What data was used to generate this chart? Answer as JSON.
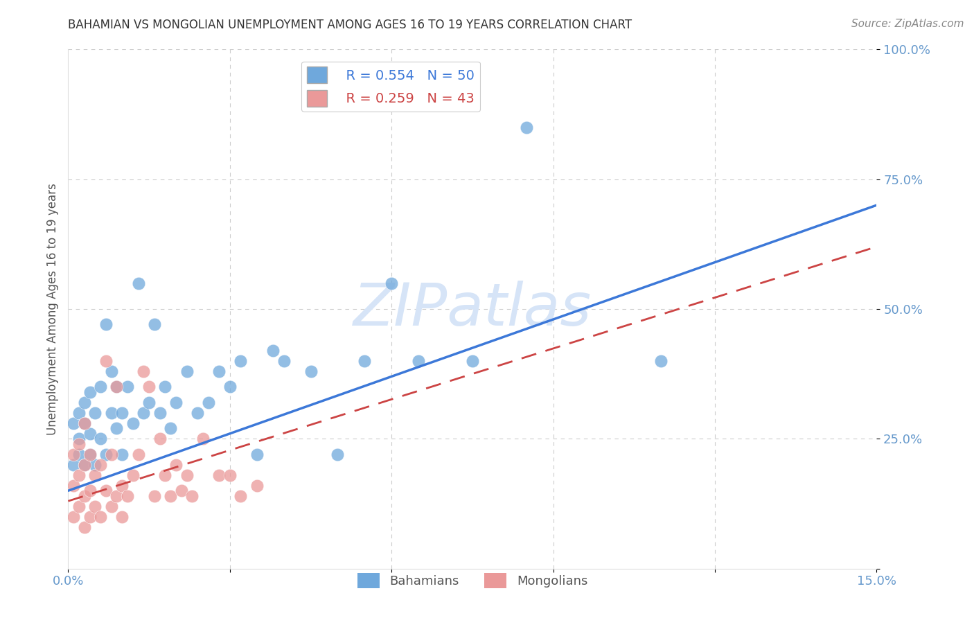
{
  "title": "BAHAMIAN VS MONGOLIAN UNEMPLOYMENT AMONG AGES 16 TO 19 YEARS CORRELATION CHART",
  "source": "Source: ZipAtlas.com",
  "ylabel": "Unemployment Among Ages 16 to 19 years",
  "xlim": [
    0.0,
    0.15
  ],
  "ylim": [
    0.0,
    1.0
  ],
  "xticks": [
    0.0,
    0.03,
    0.06,
    0.09,
    0.12,
    0.15
  ],
  "yticks": [
    0.0,
    0.25,
    0.5,
    0.75,
    1.0
  ],
  "xtick_labels": [
    "0.0%",
    "",
    "",
    "",
    "",
    "15.0%"
  ],
  "ytick_labels": [
    "",
    "25.0%",
    "50.0%",
    "75.0%",
    "100.0%"
  ],
  "bahamians_R": "0.554",
  "bahamians_N": "50",
  "mongolians_R": "0.259",
  "mongolians_N": "43",
  "bahamas_color": "#6fa8dc",
  "mongolians_color": "#ea9999",
  "trendline_bahamas_color": "#3c78d8",
  "trendline_mongolians_color": "#cc4444",
  "background_color": "#ffffff",
  "grid_color": "#cccccc",
  "title_color": "#333333",
  "axis_label_color": "#6699cc",
  "watermark_color": "#d6e4f7",
  "bahamians_x": [
    0.001,
    0.001,
    0.002,
    0.002,
    0.002,
    0.003,
    0.003,
    0.003,
    0.004,
    0.004,
    0.004,
    0.005,
    0.005,
    0.006,
    0.006,
    0.007,
    0.007,
    0.008,
    0.008,
    0.009,
    0.009,
    0.01,
    0.01,
    0.011,
    0.012,
    0.013,
    0.014,
    0.015,
    0.016,
    0.017,
    0.018,
    0.019,
    0.02,
    0.022,
    0.024,
    0.026,
    0.028,
    0.03,
    0.032,
    0.035,
    0.038,
    0.04,
    0.045,
    0.05,
    0.055,
    0.06,
    0.065,
    0.075,
    0.085,
    0.11
  ],
  "bahamians_y": [
    0.2,
    0.28,
    0.22,
    0.25,
    0.3,
    0.2,
    0.28,
    0.32,
    0.22,
    0.26,
    0.34,
    0.2,
    0.3,
    0.25,
    0.35,
    0.22,
    0.47,
    0.3,
    0.38,
    0.27,
    0.35,
    0.22,
    0.3,
    0.35,
    0.28,
    0.55,
    0.3,
    0.32,
    0.47,
    0.3,
    0.35,
    0.27,
    0.32,
    0.38,
    0.3,
    0.32,
    0.38,
    0.35,
    0.4,
    0.22,
    0.42,
    0.4,
    0.38,
    0.22,
    0.4,
    0.55,
    0.4,
    0.4,
    0.85,
    0.4
  ],
  "mongolians_x": [
    0.001,
    0.001,
    0.001,
    0.002,
    0.002,
    0.002,
    0.003,
    0.003,
    0.003,
    0.003,
    0.004,
    0.004,
    0.004,
    0.005,
    0.005,
    0.006,
    0.006,
    0.007,
    0.007,
    0.008,
    0.008,
    0.009,
    0.009,
    0.01,
    0.01,
    0.011,
    0.012,
    0.013,
    0.014,
    0.015,
    0.016,
    0.017,
    0.018,
    0.019,
    0.02,
    0.021,
    0.022,
    0.023,
    0.025,
    0.028,
    0.03,
    0.032,
    0.035
  ],
  "mongolians_y": [
    0.16,
    0.1,
    0.22,
    0.12,
    0.18,
    0.24,
    0.08,
    0.14,
    0.2,
    0.28,
    0.1,
    0.15,
    0.22,
    0.12,
    0.18,
    0.1,
    0.2,
    0.15,
    0.4,
    0.12,
    0.22,
    0.14,
    0.35,
    0.1,
    0.16,
    0.14,
    0.18,
    0.22,
    0.38,
    0.35,
    0.14,
    0.25,
    0.18,
    0.14,
    0.2,
    0.15,
    0.18,
    0.14,
    0.25,
    0.18,
    0.18,
    0.14,
    0.16
  ],
  "trendline_bahamas_x0": 0.0,
  "trendline_bahamas_y0": 0.15,
  "trendline_bahamas_x1": 0.15,
  "trendline_bahamas_y1": 0.7,
  "trendline_mongolians_x0": 0.0,
  "trendline_mongolians_y0": 0.13,
  "trendline_mongolians_x1": 0.15,
  "trendline_mongolians_y1": 0.62
}
